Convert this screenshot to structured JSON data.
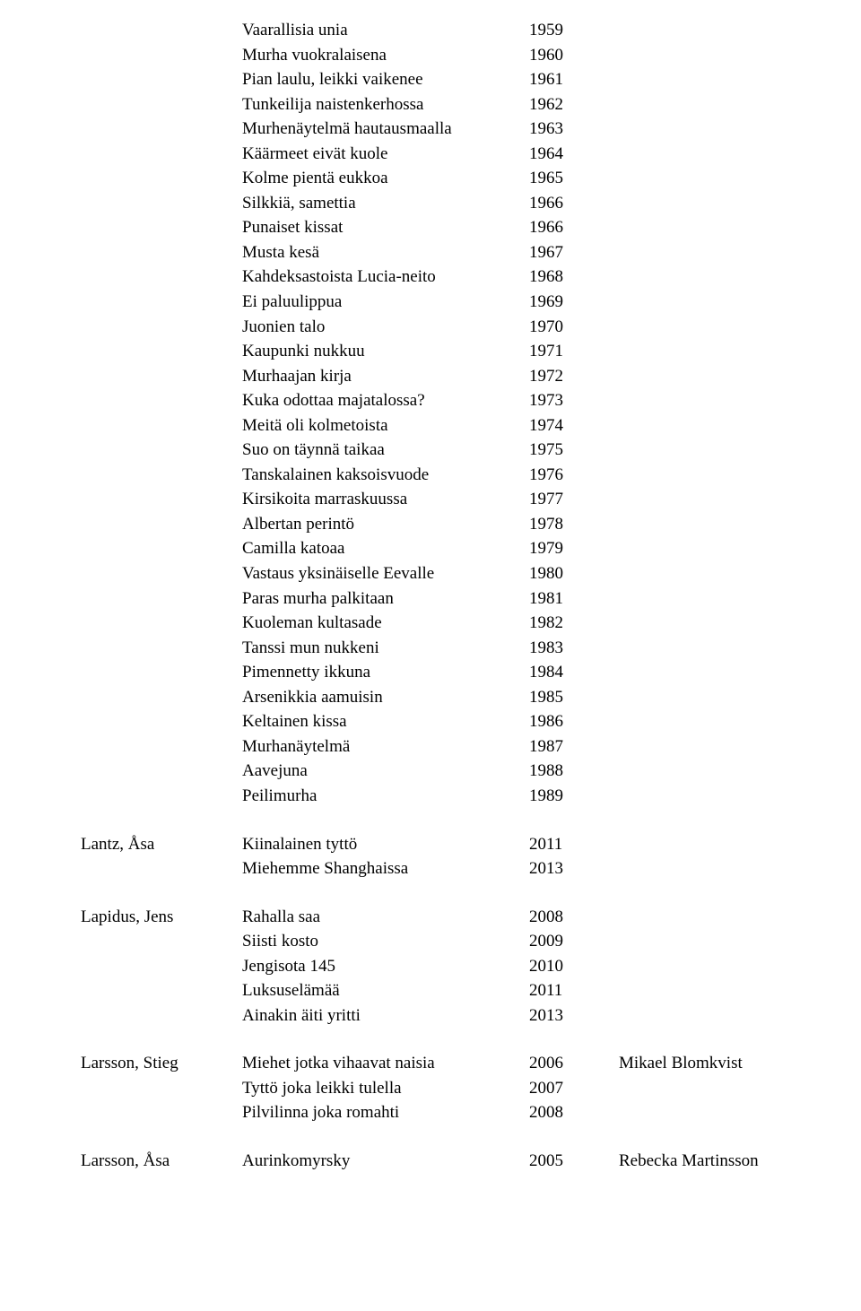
{
  "blocks": [
    {
      "author": "",
      "works": [
        {
          "title": "Vaarallisia unia",
          "year": "1959"
        },
        {
          "title": "Murha vuokralaisena",
          "year": "1960"
        },
        {
          "title": "Pian laulu, leikki vaikenee",
          "year": "1961"
        },
        {
          "title": "Tunkeilija naistenkerhossa",
          "year": "1962"
        },
        {
          "title": "Murhenäytelmä hautausmaalla",
          "year": "1963"
        },
        {
          "title": "Käärmeet eivät kuole",
          "year": "1964"
        },
        {
          "title": "Kolme pientä eukkoa",
          "year": "1965"
        },
        {
          "title": "Silkkiä, samettia",
          "year": "1966"
        },
        {
          "title": "Punaiset kissat",
          "year": "1966"
        },
        {
          "title": "Musta kesä",
          "year": "1967"
        },
        {
          "title": "Kahdeksastoista Lucia-neito",
          "year": "1968"
        },
        {
          "title": "Ei paluulippua",
          "year": "1969"
        },
        {
          "title": "Juonien talo",
          "year": "1970"
        },
        {
          "title": "Kaupunki nukkuu",
          "year": "1971"
        },
        {
          "title": "Murhaajan kirja",
          "year": "1972"
        },
        {
          "title": "Kuka odottaa majatalossa?",
          "year": "1973"
        },
        {
          "title": "Meitä oli kolmetoista",
          "year": "1974"
        },
        {
          "title": "Suo on täynnä taikaa",
          "year": "1975"
        },
        {
          "title": "Tanskalainen kaksoisvuode",
          "year": "1976"
        },
        {
          "title": "Kirsikoita marraskuussa",
          "year": "1977"
        },
        {
          "title": "Albertan perintö",
          "year": "1978"
        },
        {
          "title": "Camilla katoaa",
          "year": "1979"
        },
        {
          "title": "Vastaus yksinäiselle Eevalle",
          "year": "1980"
        },
        {
          "title": "Paras murha palkitaan",
          "year": "1981"
        },
        {
          "title": "Kuoleman kultasade",
          "year": "1982"
        },
        {
          "title": "Tanssi mun nukkeni",
          "year": "1983"
        },
        {
          "title": "Pimennetty ikkuna",
          "year": "1984"
        },
        {
          "title": "Arsenikkia aamuisin",
          "year": "1985"
        },
        {
          "title": "Keltainen kissa",
          "year": "1986"
        },
        {
          "title": "Murhanäytelmä",
          "year": "1987"
        },
        {
          "title": "Aavejuna",
          "year": "1988"
        },
        {
          "title": "Peilimurha",
          "year": "1989"
        }
      ]
    },
    {
      "author": "Lantz, Åsa",
      "works": [
        {
          "title": "Kiinalainen tyttö",
          "year": "2011"
        },
        {
          "title": "Miehemme Shanghaissa",
          "year": "2013"
        }
      ]
    },
    {
      "author": "Lapidus, Jens",
      "works": [
        {
          "title": "Rahalla saa",
          "year": "2008"
        },
        {
          "title": "Siisti kosto",
          "year": "2009"
        },
        {
          "title": "Jengisota 145",
          "year": "2010"
        },
        {
          "title": "Luksuselämää",
          "year": "2011"
        },
        {
          "title": "Ainakin äiti yritti",
          "year": "2013"
        }
      ]
    },
    {
      "author": "Larsson, Stieg",
      "works": [
        {
          "title": "Miehet jotka vihaavat naisia",
          "year": "2006",
          "extra": "Mikael Blomkvist"
        },
        {
          "title": "Tyttö joka leikki tulella",
          "year": "2007"
        },
        {
          "title": "Pilvilinna joka romahti",
          "year": "2008"
        }
      ]
    },
    {
      "author": "Larsson, Åsa",
      "works": [
        {
          "title": "Aurinkomyrsky",
          "year": "2005",
          "extra": "Rebecka Martinsson"
        }
      ]
    }
  ]
}
